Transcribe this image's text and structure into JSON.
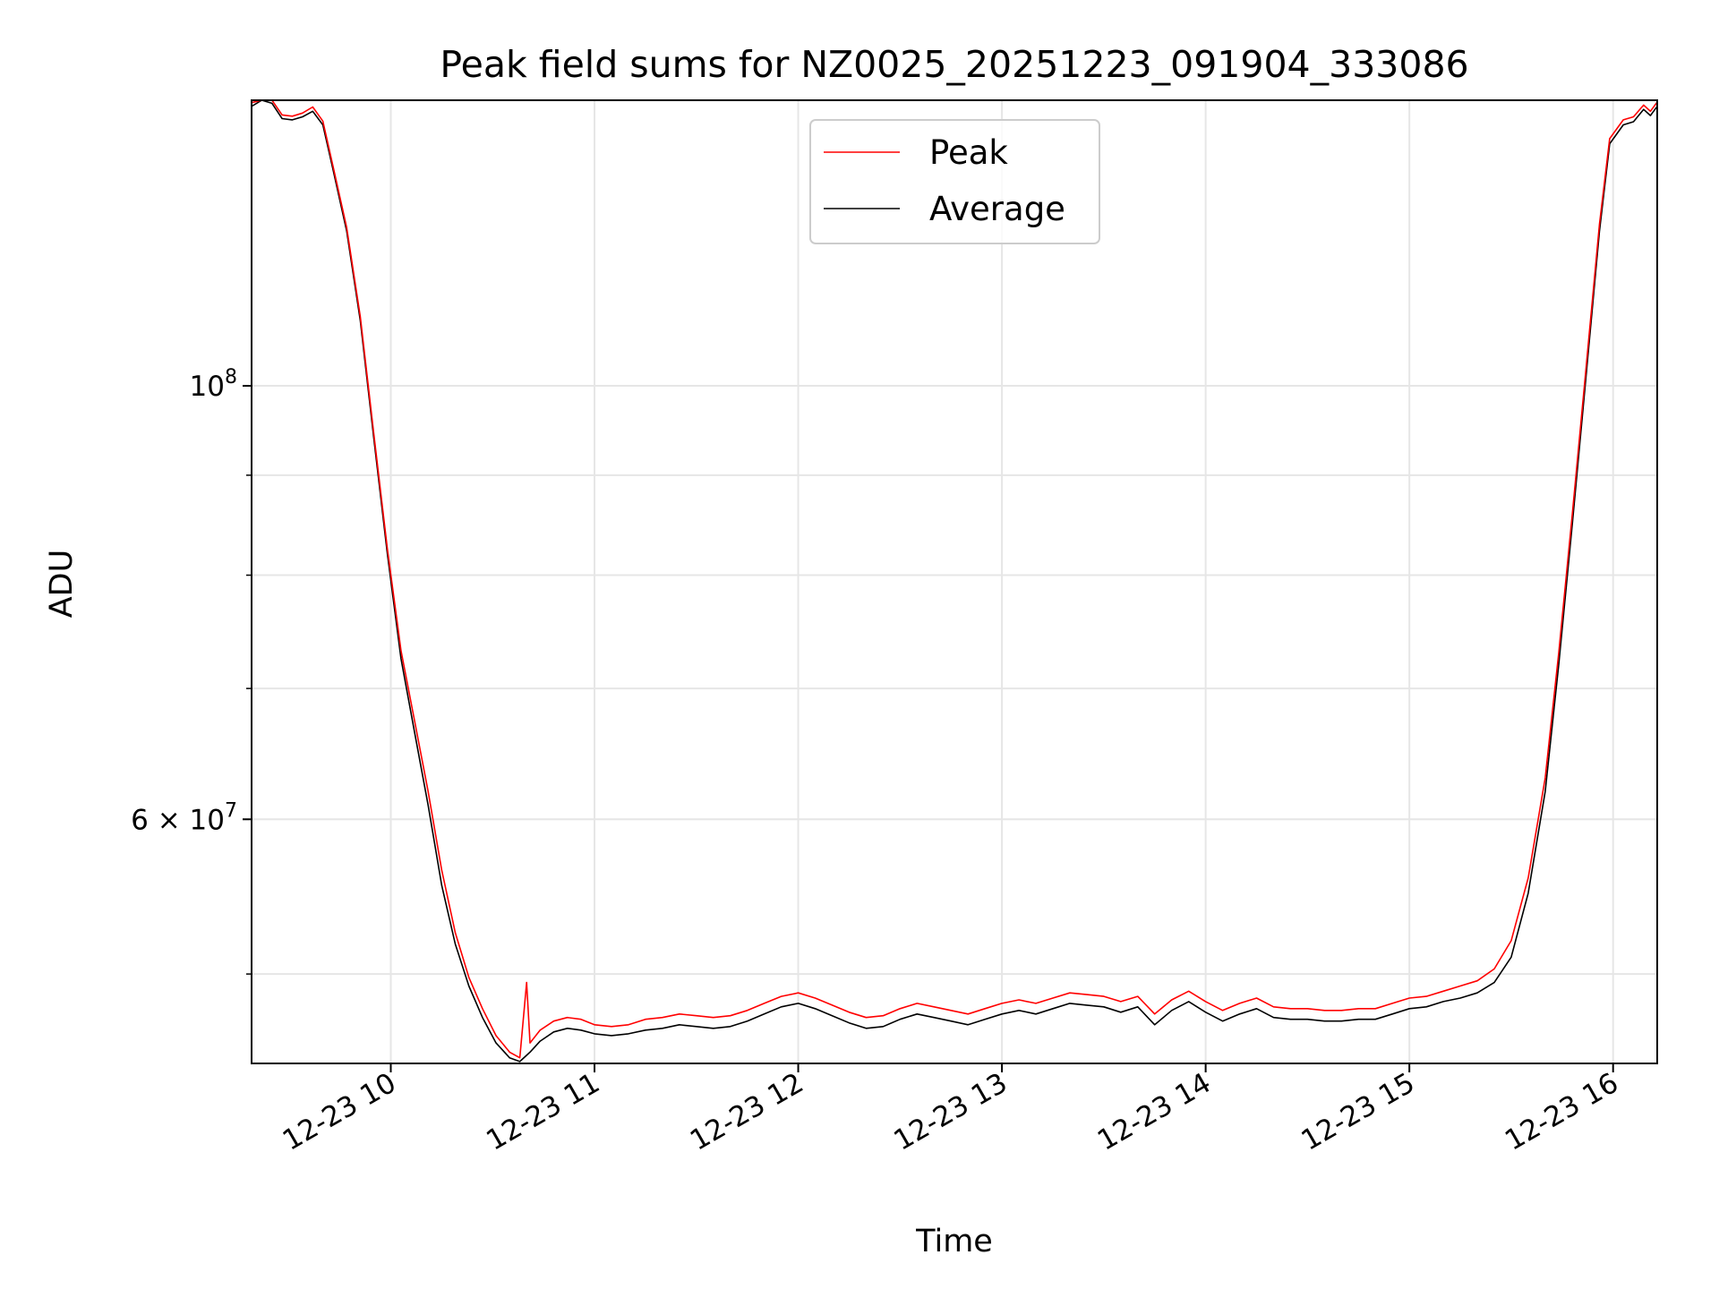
{
  "chart_data": {
    "type": "line",
    "title": "Peak field sums for NZ0025_20251223_091904_333086",
    "xlabel": "Time",
    "ylabel": "ADU",
    "yscale": "log",
    "grid": true,
    "legend_position": "upper center",
    "xlim": [
      "2025-12-23 09:19",
      "2025-12-23 16:13"
    ],
    "ylim": [
      45000000,
      140000000
    ],
    "x_ticks": [
      {
        "t": "2025-12-23 10:00",
        "label": "12-23 10"
      },
      {
        "t": "2025-12-23 11:00",
        "label": "12-23 11"
      },
      {
        "t": "2025-12-23 12:00",
        "label": "12-23 12"
      },
      {
        "t": "2025-12-23 13:00",
        "label": "12-23 13"
      },
      {
        "t": "2025-12-23 14:00",
        "label": "12-23 14"
      },
      {
        "t": "2025-12-23 15:00",
        "label": "12-23 15"
      },
      {
        "t": "2025-12-23 16:00",
        "label": "12-23 16"
      }
    ],
    "y_ticks": [
      {
        "value": 100000000,
        "base": "10",
        "exp": "8"
      },
      {
        "value": 60000000,
        "base": "6 × 10",
        "exp": "7"
      }
    ],
    "y_minor_ticks": [
      50000000,
      70000000,
      80000000,
      90000000
    ],
    "series": [
      {
        "name": "Average",
        "color": "#000000",
        "points": [
          [
            "2025-12-23 09:19",
            139000000
          ],
          [
            "2025-12-23 09:22",
            140000000
          ],
          [
            "2025-12-23 09:25",
            139500000
          ],
          [
            "2025-12-23 09:28",
            137000000
          ],
          [
            "2025-12-23 09:31",
            136800000
          ],
          [
            "2025-12-23 09:34",
            137300000
          ],
          [
            "2025-12-23 09:37",
            138200000
          ],
          [
            "2025-12-23 09:40",
            136000000
          ],
          [
            "2025-12-23 09:43",
            129000000
          ],
          [
            "2025-12-23 09:47",
            120000000
          ],
          [
            "2025-12-23 09:51",
            108000000
          ],
          [
            "2025-12-23 09:55",
            94000000
          ],
          [
            "2025-12-23 09:59",
            82000000
          ],
          [
            "2025-12-23 10:03",
            72500000
          ],
          [
            "2025-12-23 10:07",
            66500000
          ],
          [
            "2025-12-23 10:11",
            61000000
          ],
          [
            "2025-12-23 10:15",
            55500000
          ],
          [
            "2025-12-23 10:19",
            51800000
          ],
          [
            "2025-12-23 10:23",
            49300000
          ],
          [
            "2025-12-23 10:27",
            47500000
          ],
          [
            "2025-12-23 10:31",
            46100000
          ],
          [
            "2025-12-23 10:35",
            45300000
          ],
          [
            "2025-12-23 10:38",
            45100000
          ],
          [
            "2025-12-23 10:41",
            45600000
          ],
          [
            "2025-12-23 10:44",
            46200000
          ],
          [
            "2025-12-23 10:48",
            46700000
          ],
          [
            "2025-12-23 10:52",
            46900000
          ],
          [
            "2025-12-23 10:56",
            46800000
          ],
          [
            "2025-12-23 11:00",
            46600000
          ],
          [
            "2025-12-23 11:05",
            46500000
          ],
          [
            "2025-12-23 11:10",
            46600000
          ],
          [
            "2025-12-23 11:15",
            46800000
          ],
          [
            "2025-12-23 11:20",
            46900000
          ],
          [
            "2025-12-23 11:25",
            47100000
          ],
          [
            "2025-12-23 11:30",
            47000000
          ],
          [
            "2025-12-23 11:35",
            46900000
          ],
          [
            "2025-12-23 11:40",
            47000000
          ],
          [
            "2025-12-23 11:45",
            47300000
          ],
          [
            "2025-12-23 11:50",
            47700000
          ],
          [
            "2025-12-23 11:55",
            48100000
          ],
          [
            "2025-12-23 12:00",
            48300000
          ],
          [
            "2025-12-23 12:05",
            48000000
          ],
          [
            "2025-12-23 12:10",
            47600000
          ],
          [
            "2025-12-23 12:15",
            47200000
          ],
          [
            "2025-12-23 12:20",
            46900000
          ],
          [
            "2025-12-23 12:25",
            47000000
          ],
          [
            "2025-12-23 12:30",
            47400000
          ],
          [
            "2025-12-23 12:35",
            47700000
          ],
          [
            "2025-12-23 12:40",
            47500000
          ],
          [
            "2025-12-23 12:45",
            47300000
          ],
          [
            "2025-12-23 12:50",
            47100000
          ],
          [
            "2025-12-23 12:55",
            47400000
          ],
          [
            "2025-12-23 13:00",
            47700000
          ],
          [
            "2025-12-23 13:05",
            47900000
          ],
          [
            "2025-12-23 13:10",
            47700000
          ],
          [
            "2025-12-23 13:15",
            48000000
          ],
          [
            "2025-12-23 13:20",
            48300000
          ],
          [
            "2025-12-23 13:25",
            48200000
          ],
          [
            "2025-12-23 13:30",
            48100000
          ],
          [
            "2025-12-23 13:35",
            47800000
          ],
          [
            "2025-12-23 13:40",
            48100000
          ],
          [
            "2025-12-23 13:45",
            47100000
          ],
          [
            "2025-12-23 13:50",
            47900000
          ],
          [
            "2025-12-23 13:55",
            48400000
          ],
          [
            "2025-12-23 14:00",
            47800000
          ],
          [
            "2025-12-23 14:05",
            47300000
          ],
          [
            "2025-12-23 14:10",
            47700000
          ],
          [
            "2025-12-23 14:15",
            48000000
          ],
          [
            "2025-12-23 14:20",
            47500000
          ],
          [
            "2025-12-23 14:25",
            47400000
          ],
          [
            "2025-12-23 14:30",
            47400000
          ],
          [
            "2025-12-23 14:35",
            47300000
          ],
          [
            "2025-12-23 14:40",
            47300000
          ],
          [
            "2025-12-23 14:45",
            47400000
          ],
          [
            "2025-12-23 14:50",
            47400000
          ],
          [
            "2025-12-23 14:55",
            47700000
          ],
          [
            "2025-12-23 15:00",
            48000000
          ],
          [
            "2025-12-23 15:05",
            48100000
          ],
          [
            "2025-12-23 15:10",
            48400000
          ],
          [
            "2025-12-23 15:15",
            48600000
          ],
          [
            "2025-12-23 15:20",
            48900000
          ],
          [
            "2025-12-23 15:25",
            49500000
          ],
          [
            "2025-12-23 15:30",
            51000000
          ],
          [
            "2025-12-23 15:35",
            55000000
          ],
          [
            "2025-12-23 15:40",
            62000000
          ],
          [
            "2025-12-23 15:44",
            72000000
          ],
          [
            "2025-12-23 15:48",
            85000000
          ],
          [
            "2025-12-23 15:52",
            101000000
          ],
          [
            "2025-12-23 15:56",
            120000000
          ],
          [
            "2025-12-23 15:59",
            133000000
          ],
          [
            "2025-12-23 16:03",
            136000000
          ],
          [
            "2025-12-23 16:06",
            136500000
          ],
          [
            "2025-12-23 16:09",
            138500000
          ],
          [
            "2025-12-23 16:11",
            137500000
          ],
          [
            "2025-12-23 16:13",
            139000000
          ]
        ]
      },
      {
        "name": "Peak",
        "color": "#ff0000",
        "points": [
          [
            "2025-12-23 09:19",
            139600000
          ],
          [
            "2025-12-23 09:22",
            140000000
          ],
          [
            "2025-12-23 09:25",
            140000000
          ],
          [
            "2025-12-23 09:28",
            137600000
          ],
          [
            "2025-12-23 09:31",
            137400000
          ],
          [
            "2025-12-23 09:34",
            137900000
          ],
          [
            "2025-12-23 09:37",
            138900000
          ],
          [
            "2025-12-23 09:40",
            136600000
          ],
          [
            "2025-12-23 09:43",
            129500000
          ],
          [
            "2025-12-23 09:47",
            120500000
          ],
          [
            "2025-12-23 09:51",
            108500000
          ],
          [
            "2025-12-23 09:55",
            94500000
          ],
          [
            "2025-12-23 09:59",
            82500000
          ],
          [
            "2025-12-23 10:03",
            73200000
          ],
          [
            "2025-12-23 10:07",
            67400000
          ],
          [
            "2025-12-23 10:11",
            62000000
          ],
          [
            "2025-12-23 10:15",
            56500000
          ],
          [
            "2025-12-23 10:19",
            52500000
          ],
          [
            "2025-12-23 10:23",
            49800000
          ],
          [
            "2025-12-23 10:27",
            48000000
          ],
          [
            "2025-12-23 10:31",
            46500000
          ],
          [
            "2025-12-23 10:35",
            45600000
          ],
          [
            "2025-12-23 10:38",
            45300000
          ],
          [
            "2025-12-23 10:40",
            49500000
          ],
          [
            "2025-12-23 10:41",
            46100000
          ],
          [
            "2025-12-23 10:44",
            46800000
          ],
          [
            "2025-12-23 10:48",
            47300000
          ],
          [
            "2025-12-23 10:52",
            47500000
          ],
          [
            "2025-12-23 10:56",
            47400000
          ],
          [
            "2025-12-23 11:00",
            47100000
          ],
          [
            "2025-12-23 11:05",
            47000000
          ],
          [
            "2025-12-23 11:10",
            47100000
          ],
          [
            "2025-12-23 11:15",
            47400000
          ],
          [
            "2025-12-23 11:20",
            47500000
          ],
          [
            "2025-12-23 11:25",
            47700000
          ],
          [
            "2025-12-23 11:30",
            47600000
          ],
          [
            "2025-12-23 11:35",
            47500000
          ],
          [
            "2025-12-23 11:40",
            47600000
          ],
          [
            "2025-12-23 11:45",
            47900000
          ],
          [
            "2025-12-23 11:50",
            48300000
          ],
          [
            "2025-12-23 11:55",
            48700000
          ],
          [
            "2025-12-23 12:00",
            48900000
          ],
          [
            "2025-12-23 12:05",
            48600000
          ],
          [
            "2025-12-23 12:10",
            48200000
          ],
          [
            "2025-12-23 12:15",
            47800000
          ],
          [
            "2025-12-23 12:20",
            47500000
          ],
          [
            "2025-12-23 12:25",
            47600000
          ],
          [
            "2025-12-23 12:30",
            48000000
          ],
          [
            "2025-12-23 12:35",
            48300000
          ],
          [
            "2025-12-23 12:40",
            48100000
          ],
          [
            "2025-12-23 12:45",
            47900000
          ],
          [
            "2025-12-23 12:50",
            47700000
          ],
          [
            "2025-12-23 12:55",
            48000000
          ],
          [
            "2025-12-23 13:00",
            48300000
          ],
          [
            "2025-12-23 13:05",
            48500000
          ],
          [
            "2025-12-23 13:10",
            48300000
          ],
          [
            "2025-12-23 13:15",
            48600000
          ],
          [
            "2025-12-23 13:20",
            48900000
          ],
          [
            "2025-12-23 13:25",
            48800000
          ],
          [
            "2025-12-23 13:30",
            48700000
          ],
          [
            "2025-12-23 13:35",
            48400000
          ],
          [
            "2025-12-23 13:40",
            48700000
          ],
          [
            "2025-12-23 13:45",
            47700000
          ],
          [
            "2025-12-23 13:50",
            48500000
          ],
          [
            "2025-12-23 13:55",
            49000000
          ],
          [
            "2025-12-23 14:00",
            48400000
          ],
          [
            "2025-12-23 14:05",
            47900000
          ],
          [
            "2025-12-23 14:10",
            48300000
          ],
          [
            "2025-12-23 14:15",
            48600000
          ],
          [
            "2025-12-23 14:20",
            48100000
          ],
          [
            "2025-12-23 14:25",
            48000000
          ],
          [
            "2025-12-23 14:30",
            48000000
          ],
          [
            "2025-12-23 14:35",
            47900000
          ],
          [
            "2025-12-23 14:40",
            47900000
          ],
          [
            "2025-12-23 14:45",
            48000000
          ],
          [
            "2025-12-23 14:50",
            48000000
          ],
          [
            "2025-12-23 14:55",
            48300000
          ],
          [
            "2025-12-23 15:00",
            48600000
          ],
          [
            "2025-12-23 15:05",
            48700000
          ],
          [
            "2025-12-23 15:10",
            49000000
          ],
          [
            "2025-12-23 15:15",
            49300000
          ],
          [
            "2025-12-23 15:20",
            49600000
          ],
          [
            "2025-12-23 15:25",
            50300000
          ],
          [
            "2025-12-23 15:30",
            52000000
          ],
          [
            "2025-12-23 15:35",
            56000000
          ],
          [
            "2025-12-23 15:40",
            63000000
          ],
          [
            "2025-12-23 15:44",
            73000000
          ],
          [
            "2025-12-23 15:48",
            86000000
          ],
          [
            "2025-12-23 15:52",
            102000000
          ],
          [
            "2025-12-23 15:56",
            121000000
          ],
          [
            "2025-12-23 15:59",
            133800000
          ],
          [
            "2025-12-23 16:03",
            136800000
          ],
          [
            "2025-12-23 16:06",
            137300000
          ],
          [
            "2025-12-23 16:09",
            139200000
          ],
          [
            "2025-12-23 16:11",
            138200000
          ],
          [
            "2025-12-23 16:13",
            139700000
          ]
        ]
      }
    ],
    "legend": [
      {
        "name": "Peak",
        "color": "#ff0000"
      },
      {
        "name": "Average",
        "color": "#000000"
      }
    ]
  }
}
